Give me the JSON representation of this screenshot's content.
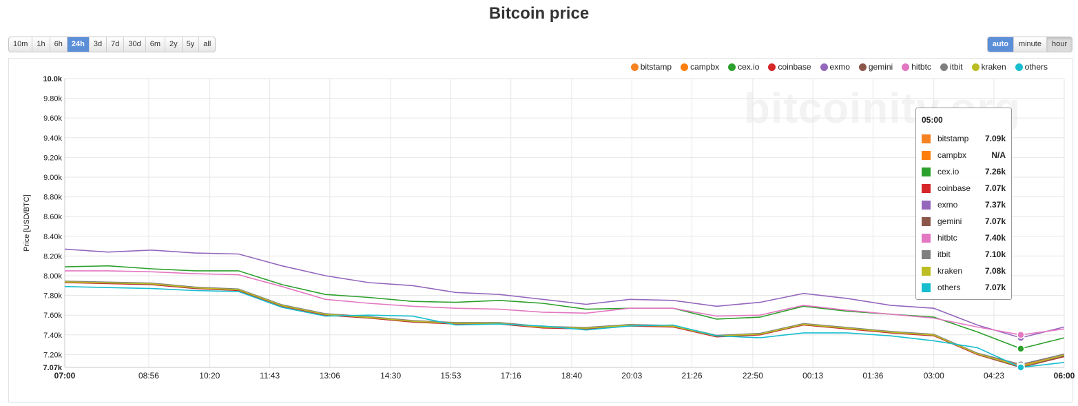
{
  "page": {
    "title": "Bitcoin price"
  },
  "range_buttons": [
    {
      "label": "10m",
      "active": false
    },
    {
      "label": "1h",
      "active": false
    },
    {
      "label": "6h",
      "active": false
    },
    {
      "label": "24h",
      "active": true
    },
    {
      "label": "3d",
      "active": false
    },
    {
      "label": "7d",
      "active": false
    },
    {
      "label": "30d",
      "active": false
    },
    {
      "label": "6m",
      "active": false
    },
    {
      "label": "2y",
      "active": false
    },
    {
      "label": "5y",
      "active": false
    },
    {
      "label": "all",
      "active": false
    }
  ],
  "resolution_buttons": [
    {
      "label": "auto",
      "state": "active"
    },
    {
      "label": "minute",
      "state": ""
    },
    {
      "label": "hour",
      "state": "pressed"
    }
  ],
  "watermark": "bitcoinity.org",
  "tooltip": {
    "time": "05:00",
    "rows": [
      {
        "name": "bitstamp",
        "value": "7.09k",
        "color": "#f58220"
      },
      {
        "name": "campbx",
        "value": "N/A",
        "color": "#ff7f0e"
      },
      {
        "name": "cex.io",
        "value": "7.26k",
        "color": "#2ca02c"
      },
      {
        "name": "coinbase",
        "value": "7.07k",
        "color": "#d62728"
      },
      {
        "name": "exmo",
        "value": "7.37k",
        "color": "#9467bd"
      },
      {
        "name": "gemini",
        "value": "7.07k",
        "color": "#8c564b"
      },
      {
        "name": "hitbtc",
        "value": "7.40k",
        "color": "#e377c2"
      },
      {
        "name": "itbit",
        "value": "7.10k",
        "color": "#7f7f7f"
      },
      {
        "name": "kraken",
        "value": "7.08k",
        "color": "#bcbd22"
      },
      {
        "name": "others",
        "value": "7.07k",
        "color": "#17becf"
      }
    ]
  },
  "chart_data": {
    "type": "line",
    "ylabel": "Price [USD/BTC]",
    "xlabel": "",
    "ylim": [
      7070,
      10000
    ],
    "yticks": [
      7070,
      7200,
      7400,
      7600,
      7800,
      8000,
      8200,
      8400,
      8600,
      8800,
      9000,
      9200,
      9400,
      9600,
      9800,
      10000
    ],
    "ytick_labels": [
      "7.07k",
      "7.20k",
      "7.40k",
      "7.60k",
      "7.80k",
      "8.00k",
      "8.20k",
      "8.40k",
      "8.60k",
      "8.80k",
      "9.00k",
      "9.20k",
      "9.40k",
      "9.60k",
      "9.80k",
      "10.0k"
    ],
    "xticks": [
      0,
      116,
      200,
      283,
      366,
      450,
      533,
      616,
      700,
      783,
      866,
      950,
      1033,
      1116,
      1200,
      1283,
      1380
    ],
    "xtick_labels": [
      "07:00",
      "08:56",
      "10:20",
      "11:43",
      "13:06",
      "14:30",
      "15:53",
      "17:16",
      "18:40",
      "20:03",
      "21:26",
      "22:50",
      "00:13",
      "01:36",
      "03:00",
      "04:23",
      "06:00"
    ],
    "xtick_bold": [
      "07:00",
      "06:00"
    ],
    "x_minutes": [
      0,
      60,
      120,
      180,
      240,
      300,
      360,
      420,
      480,
      540,
      600,
      660,
      720,
      780,
      840,
      900,
      960,
      1020,
      1080,
      1140,
      1200,
      1260,
      1320,
      1380
    ],
    "highlight_minute": 1320,
    "grid": true,
    "legend_position": "top-right",
    "series": [
      {
        "name": "bitstamp",
        "color": "#f58220",
        "values": [
          7940,
          7930,
          7920,
          7880,
          7860,
          7700,
          7610,
          7580,
          7540,
          7520,
          7520,
          7480,
          7470,
          7500,
          7490,
          7390,
          7410,
          7510,
          7470,
          7430,
          7400,
          7210,
          7090,
          7200
        ]
      },
      {
        "name": "campbx",
        "color": "#ff7f0e",
        "values": [
          null,
          null,
          null,
          null,
          null,
          null,
          null,
          null,
          null,
          null,
          null,
          null,
          null,
          null,
          null,
          null,
          null,
          null,
          null,
          null,
          null,
          null,
          null,
          null
        ]
      },
      {
        "name": "cex.io",
        "color": "#2ca02c",
        "values": [
          8090,
          8100,
          8070,
          8050,
          8050,
          7910,
          7810,
          7780,
          7740,
          7730,
          7750,
          7720,
          7660,
          7670,
          7670,
          7560,
          7580,
          7690,
          7640,
          7610,
          7580,
          7430,
          7260,
          7370
        ]
      },
      {
        "name": "coinbase",
        "color": "#d62728",
        "values": [
          7930,
          7920,
          7910,
          7870,
          7850,
          7690,
          7600,
          7570,
          7530,
          7510,
          7510,
          7470,
          7460,
          7490,
          7480,
          7380,
          7400,
          7500,
          7460,
          7420,
          7390,
          7200,
          7070,
          7180
        ]
      },
      {
        "name": "exmo",
        "color": "#9467bd",
        "values": [
          8270,
          8240,
          8260,
          8230,
          8220,
          8100,
          8000,
          7930,
          7900,
          7830,
          7810,
          7760,
          7710,
          7760,
          7750,
          7690,
          7730,
          7820,
          7770,
          7700,
          7670,
          7500,
          7370,
          7480
        ]
      },
      {
        "name": "gemini",
        "color": "#8c564b",
        "values": [
          7935,
          7925,
          7915,
          7875,
          7855,
          7695,
          7605,
          7575,
          7535,
          7515,
          7515,
          7475,
          7465,
          7495,
          7485,
          7385,
          7405,
          7505,
          7465,
          7425,
          7395,
          7205,
          7070,
          7185
        ]
      },
      {
        "name": "hitbtc",
        "color": "#e377c2",
        "values": [
          8050,
          8050,
          8040,
          8020,
          8010,
          7890,
          7760,
          7720,
          7690,
          7670,
          7660,
          7630,
          7620,
          7670,
          7670,
          7590,
          7600,
          7700,
          7650,
          7610,
          7570,
          7480,
          7400,
          7460
        ]
      },
      {
        "name": "itbit",
        "color": "#7f7f7f",
        "values": [
          7945,
          7935,
          7925,
          7885,
          7865,
          7705,
          7615,
          7585,
          7545,
          7525,
          7525,
          7485,
          7475,
          7505,
          7495,
          7395,
          7415,
          7515,
          7475,
          7435,
          7405,
          7215,
          7100,
          7205
        ]
      },
      {
        "name": "kraken",
        "color": "#bcbd22",
        "values": [
          7938,
          7928,
          7918,
          7878,
          7858,
          7698,
          7608,
          7578,
          7538,
          7518,
          7518,
          7478,
          7468,
          7498,
          7488,
          7388,
          7408,
          7508,
          7468,
          7428,
          7398,
          7208,
          7080,
          7195
        ]
      },
      {
        "name": "others",
        "color": "#17becf",
        "values": [
          7890,
          7880,
          7870,
          7850,
          7840,
          7680,
          7590,
          7600,
          7590,
          7500,
          7510,
          7490,
          7450,
          7490,
          7500,
          7390,
          7370,
          7420,
          7420,
          7390,
          7340,
          7270,
          7070,
          7120
        ]
      }
    ]
  }
}
